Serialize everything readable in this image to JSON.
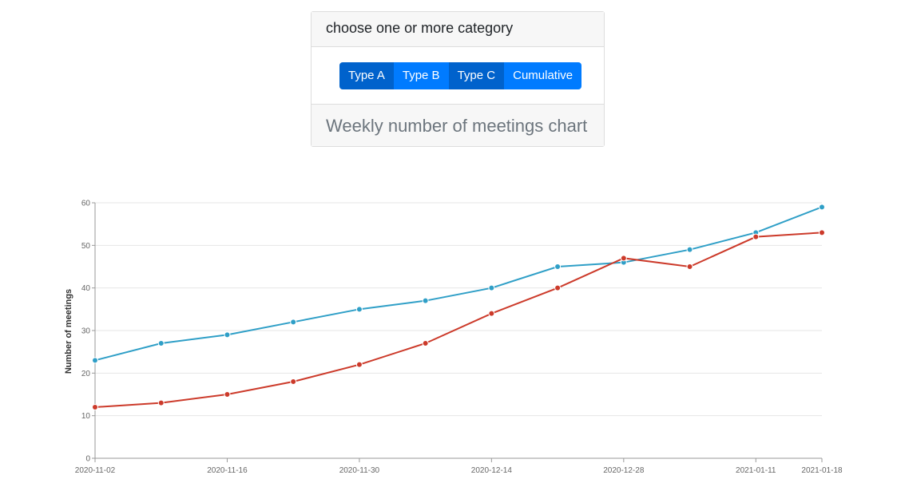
{
  "panel": {
    "header": "choose one or more category",
    "buttons": [
      {
        "label": "Type A",
        "active": true
      },
      {
        "label": "Type B",
        "active": false
      },
      {
        "label": "Type C",
        "active": true
      },
      {
        "label": "Cumulative",
        "active": false
      }
    ],
    "footer": "Weekly number of meetings chart"
  },
  "chart_data": {
    "type": "line",
    "title": "",
    "xlabel": "",
    "ylabel": "Number of meetings",
    "ylim": [
      0,
      60
    ],
    "yticks": [
      0,
      10,
      20,
      30,
      40,
      50,
      60
    ],
    "xlim": [
      "2020-11-02",
      "2021-01-18"
    ],
    "xticks": [
      "2020-11-02",
      "2020-11-16",
      "2020-11-30",
      "2020-12-14",
      "2020-12-28",
      "2021-01-11",
      "2021-01-18"
    ],
    "grid": "horizontal",
    "x": [
      "2020-11-02",
      "2020-11-09",
      "2020-11-16",
      "2020-11-23",
      "2020-11-30",
      "2020-12-07",
      "2020-12-14",
      "2020-12-21",
      "2020-12-28",
      "2021-01-04",
      "2021-01-11",
      "2021-01-18"
    ],
    "series": [
      {
        "color": "#2f9fc7",
        "values": [
          23,
          27,
          29,
          32,
          35,
          37,
          40,
          45,
          46,
          49,
          53,
          59
        ]
      },
      {
        "color": "#cc3a2a",
        "values": [
          12,
          13,
          15,
          18,
          22,
          27,
          34,
          40,
          47,
          45,
          52,
          53
        ]
      }
    ]
  }
}
